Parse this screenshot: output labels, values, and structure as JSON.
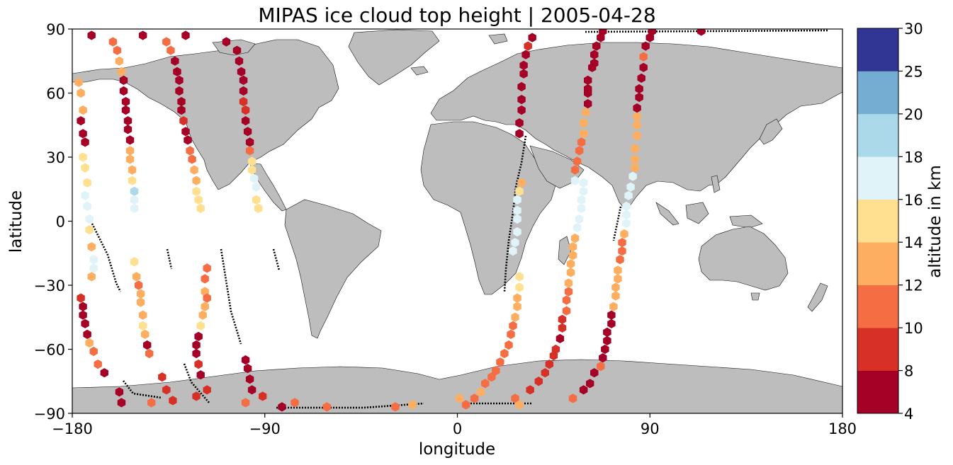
{
  "chart_data": {
    "type": "scatter",
    "title": "MIPAS ice cloud top height | 2005-04-28",
    "xlabel": "longitude",
    "ylabel": "latitude",
    "xlim": [
      -180,
      180
    ],
    "ylim": [
      -90,
      90
    ],
    "x_ticks": [
      "−180",
      "−90",
      "0",
      "90",
      "180"
    ],
    "y_ticks": [
      "90",
      "60",
      "30",
      "0",
      "−30",
      "−60",
      "−90"
    ],
    "land_color": "#bdbdbd",
    "colorbar": {
      "label": "altitude in km",
      "ticks": [
        "4",
        "8",
        "10",
        "12",
        "14",
        "16",
        "18",
        "20",
        "25",
        "30"
      ],
      "colors": [
        "#a50026",
        "#d73027",
        "#f46d43",
        "#fdae61",
        "#fee090",
        "#e0f3f8",
        "#abd9e9",
        "#74add1",
        "#313695"
      ]
    },
    "series": [
      {
        "points": [
          [
            -171,
            87
          ],
          [
            -177,
            65
          ],
          [
            -176,
            60
          ],
          [
            -175,
            52
          ],
          [
            -176,
            47
          ],
          [
            -175,
            41
          ],
          [
            -174,
            37
          ],
          [
            -175,
            30
          ],
          [
            -174,
            25
          ],
          [
            -173,
            18
          ],
          [
            -174,
            12
          ],
          [
            -173,
            7
          ],
          [
            -172,
            1
          ],
          [
            -172,
            -4
          ],
          [
            -171,
            -12
          ],
          [
            -170,
            -18
          ],
          [
            -170,
            -22
          ],
          [
            -171,
            -26
          ],
          [
            -157,
            -85
          ],
          [
            -158,
            -80
          ],
          [
            -165,
            -71
          ],
          [
            -168,
            -67
          ],
          [
            -170,
            -61
          ],
          [
            -172,
            -57
          ],
          [
            -173,
            -53
          ],
          [
            -174,
            -48
          ],
          [
            -175,
            -44
          ],
          [
            -175,
            -40
          ],
          [
            -176,
            -36
          ]
        ],
        "values": [
          6,
          13,
          12,
          12,
          7,
          7,
          7,
          15,
          15,
          15,
          17,
          17,
          17,
          15,
          12,
          17,
          17,
          13,
          5,
          5,
          6,
          11,
          11,
          12,
          7,
          7,
          7,
          7,
          8
        ]
      },
      {
        "points": [
          [
            -161,
            84
          ],
          [
            -159,
            80
          ],
          [
            -158,
            75
          ],
          [
            -157,
            70
          ],
          [
            -156,
            66
          ],
          [
            -156,
            61
          ],
          [
            -155,
            56
          ],
          [
            -155,
            52
          ],
          [
            -154,
            47
          ],
          [
            -154,
            43
          ],
          [
            -153,
            38
          ],
          [
            -153,
            33
          ],
          [
            -153,
            29
          ],
          [
            -152,
            24
          ],
          [
            -152,
            19
          ],
          [
            -151,
            14
          ],
          [
            -151,
            10
          ],
          [
            -151,
            6
          ],
          [
            -151,
            -19
          ],
          [
            -150,
            -26
          ],
          [
            -149,
            -30
          ],
          [
            -148,
            -34
          ],
          [
            -148,
            -38
          ],
          [
            -147,
            -44
          ],
          [
            -147,
            -49
          ],
          [
            -146,
            -53
          ],
          [
            -145,
            -58
          ],
          [
            -144,
            -62
          ],
          [
            -138,
            -73
          ],
          [
            -136,
            -79
          ],
          [
            -133,
            -84
          ],
          [
            -143,
            -85
          ]
        ],
        "values": [
          11,
          11,
          12,
          12,
          7,
          7,
          7,
          7,
          7,
          7,
          7,
          13,
          13,
          13,
          15,
          18,
          17,
          17,
          15,
          12,
          11,
          13,
          13,
          13,
          14,
          12,
          7,
          11,
          8,
          8,
          8,
          11
        ]
      },
      {
        "points": [
          [
            -147,
            87
          ],
          [
            -136,
            84
          ],
          [
            -134,
            80
          ],
          [
            -132,
            75
          ],
          [
            -131,
            70
          ],
          [
            -130,
            66
          ],
          [
            -130,
            61
          ],
          [
            -129,
            56
          ],
          [
            -129,
            52
          ],
          [
            -128,
            47
          ],
          [
            -127,
            42
          ],
          [
            -126,
            38
          ],
          [
            -125,
            33
          ],
          [
            -124,
            29
          ],
          [
            -123,
            24
          ],
          [
            -122,
            19
          ],
          [
            -122,
            14
          ],
          [
            -121,
            10
          ],
          [
            -120,
            6
          ],
          [
            -117,
            -22
          ],
          [
            -118,
            -27
          ],
          [
            -118,
            -33
          ],
          [
            -117,
            -36
          ],
          [
            -118,
            -40
          ],
          [
            -119,
            -44
          ],
          [
            -120,
            -49
          ],
          [
            -121,
            -54
          ],
          [
            -122,
            -58
          ],
          [
            -122,
            -62
          ],
          [
            -121,
            -67
          ],
          [
            -120,
            -72
          ],
          [
            -117,
            -79
          ],
          [
            -122,
            -82
          ]
        ],
        "values": [
          6,
          11,
          11,
          5,
          6,
          6,
          6,
          7,
          7,
          8,
          7,
          7,
          11,
          11,
          13,
          13,
          15,
          15,
          15,
          10,
          11,
          12,
          11,
          12,
          13,
          14,
          7,
          7,
          7,
          8,
          7,
          8,
          8
        ]
      },
      {
        "points": [
          [
            -127,
            87
          ],
          [
            -108,
            84
          ],
          [
            -103,
            80
          ],
          [
            -102,
            75
          ],
          [
            -101,
            70
          ],
          [
            -100,
            66
          ],
          [
            -100,
            61
          ],
          [
            -100,
            56
          ],
          [
            -99,
            52
          ],
          [
            -99,
            47
          ],
          [
            -98,
            42
          ],
          [
            -97,
            37
          ],
          [
            -97,
            33
          ],
          [
            -91,
            -82
          ],
          [
            -99,
            -85
          ],
          [
            -96,
            -79
          ],
          [
            -97,
            -74
          ],
          [
            -98,
            -69
          ],
          [
            -99,
            -65
          ]
        ],
        "values": [
          6,
          6,
          6,
          7,
          7,
          7,
          7,
          8,
          8,
          7,
          7,
          7,
          11,
          8,
          11,
          6,
          7,
          7,
          7
        ]
      },
      {
        "points": [
          [
            -96,
            28
          ],
          [
            -96,
            24
          ],
          [
            -95,
            20
          ],
          [
            -94,
            16
          ],
          [
            -94,
            10
          ],
          [
            -93,
            6
          ]
        ],
        "values": [
          15,
          15,
          17,
          17,
          15,
          15
        ]
      },
      {
        "points": [
          [
            -82,
            -87
          ],
          [
            -76,
            -85
          ],
          [
            -61,
            -87
          ],
          [
            -29,
            -87
          ],
          [
            -21,
            -86
          ],
          [
            1,
            -83
          ],
          [
            4,
            -86
          ],
          [
            8,
            -83
          ],
          [
            11,
            -80
          ],
          [
            13,
            -76
          ],
          [
            16,
            -73
          ],
          [
            18,
            -70
          ],
          [
            20,
            -66
          ],
          [
            22,
            -62
          ],
          [
            24,
            -58
          ],
          [
            25,
            -53
          ],
          [
            26,
            -49
          ],
          [
            27,
            -45
          ],
          [
            28,
            -40
          ],
          [
            28,
            -36
          ],
          [
            29,
            -31
          ],
          [
            29,
            -26
          ]
        ],
        "values": [
          6,
          11,
          11,
          11,
          12,
          12,
          11,
          11,
          12,
          11,
          11,
          11,
          11,
          11,
          11,
          11,
          11,
          13,
          13,
          13,
          15,
          15
        ]
      },
      {
        "points": [
          [
            27,
            -83
          ],
          [
            29,
            -86
          ],
          [
            34,
            -79
          ],
          [
            38,
            -75
          ],
          [
            41,
            -71
          ],
          [
            43,
            -67
          ],
          [
            45,
            -63
          ],
          [
            46,
            -60
          ],
          [
            48,
            -55
          ],
          [
            49,
            -50
          ],
          [
            49,
            -46
          ],
          [
            51,
            -42
          ],
          [
            51,
            -37
          ],
          [
            52,
            -33
          ],
          [
            52,
            -29
          ],
          [
            53,
            -24
          ],
          [
            53,
            -20
          ],
          [
            54,
            -16
          ],
          [
            54,
            -12
          ],
          [
            55,
            -8
          ],
          [
            56,
            -3
          ],
          [
            57,
            1
          ],
          [
            58,
            6
          ],
          [
            58,
            10
          ],
          [
            59,
            14
          ],
          [
            59,
            18
          ]
        ],
        "values": [
          11,
          12,
          8,
          8,
          8,
          8,
          8,
          8,
          7,
          8,
          9,
          10,
          11,
          11,
          12,
          12,
          12,
          12,
          13,
          12,
          17,
          17,
          17,
          17,
          17,
          17
        ]
      },
      {
        "points": [
          [
            29,
            14
          ],
          [
            30,
            18
          ],
          [
            28,
            10
          ],
          [
            28,
            5
          ],
          [
            28,
            1
          ],
          [
            28,
            -5
          ],
          [
            27,
            -10
          ],
          [
            26,
            -14
          ]
        ],
        "values": [
          15,
          12,
          17,
          17,
          17,
          17,
          17,
          17
        ]
      },
      {
        "points": [
          [
            33,
            82
          ],
          [
            35,
            86
          ],
          [
            32,
            78
          ],
          [
            31,
            73
          ],
          [
            31,
            69
          ],
          [
            30,
            63
          ],
          [
            30,
            57
          ],
          [
            30,
            52
          ],
          [
            29,
            46
          ],
          [
            29,
            41
          ]
        ],
        "values": [
          8,
          6,
          6,
          6,
          6,
          6,
          6,
          7,
          6,
          6
        ]
      },
      {
        "points": [
          [
            54,
            -83
          ],
          [
            59,
            -79
          ],
          [
            62,
            -76
          ],
          [
            64,
            -71
          ],
          [
            67,
            -68
          ],
          [
            68,
            -64
          ],
          [
            69,
            -60
          ],
          [
            70,
            -56
          ],
          [
            70,
            -52
          ],
          [
            72,
            -48
          ],
          [
            72,
            -44
          ],
          [
            73,
            -40
          ],
          [
            74,
            -35
          ],
          [
            74,
            -31
          ],
          [
            75,
            -27
          ],
          [
            75,
            -23
          ],
          [
            76,
            -18
          ],
          [
            77,
            -14
          ],
          [
            77,
            -10
          ],
          [
            78,
            -6
          ],
          [
            79,
            -1
          ],
          [
            79,
            3
          ],
          [
            79,
            7
          ],
          [
            80,
            12
          ],
          [
            81,
            16
          ],
          [
            82,
            21
          ],
          [
            83,
            25
          ]
        ],
        "values": [
          10,
          6,
          6,
          6,
          11,
          6,
          6,
          6,
          6,
          6,
          6,
          13,
          12,
          12,
          12,
          12,
          11,
          11,
          11,
          12,
          17,
          17,
          17,
          17,
          17,
          17,
          12
        ]
      },
      {
        "points": [
          [
            63,
            72
          ],
          [
            61,
            66
          ],
          [
            61,
            60
          ],
          [
            61,
            55
          ],
          [
            60,
            51
          ],
          [
            59,
            46
          ],
          [
            59,
            41
          ],
          [
            58,
            37
          ],
          [
            57,
            33
          ],
          [
            56,
            28
          ],
          [
            55,
            24
          ],
          [
            55,
            19
          ]
        ],
        "values": [
          6,
          6,
          7,
          7,
          13,
          13,
          13,
          10,
          11,
          11,
          11,
          17
        ]
      },
      {
        "points": [
          [
            64,
            78
          ],
          [
            65,
            82
          ],
          [
            67,
            86
          ],
          [
            68,
            89
          ],
          [
            64,
            74
          ],
          [
            61,
            62
          ]
        ],
        "values": [
          6,
          6,
          6,
          6,
          6,
          6
        ]
      },
      {
        "points": [
          [
            83,
            29
          ],
          [
            83,
            34
          ],
          [
            84,
            40
          ],
          [
            84,
            45
          ],
          [
            84,
            49
          ],
          [
            84,
            53
          ],
          [
            85,
            58
          ],
          [
            85,
            62
          ],
          [
            86,
            67
          ],
          [
            87,
            72
          ],
          [
            87,
            77
          ],
          [
            88,
            82
          ],
          [
            90,
            86
          ],
          [
            91,
            89
          ],
          [
            114,
            89
          ]
        ],
        "values": [
          13,
          12,
          12,
          13,
          13,
          6,
          6,
          6,
          7,
          6,
          10,
          6,
          6,
          6,
          6
        ]
      }
    ]
  }
}
